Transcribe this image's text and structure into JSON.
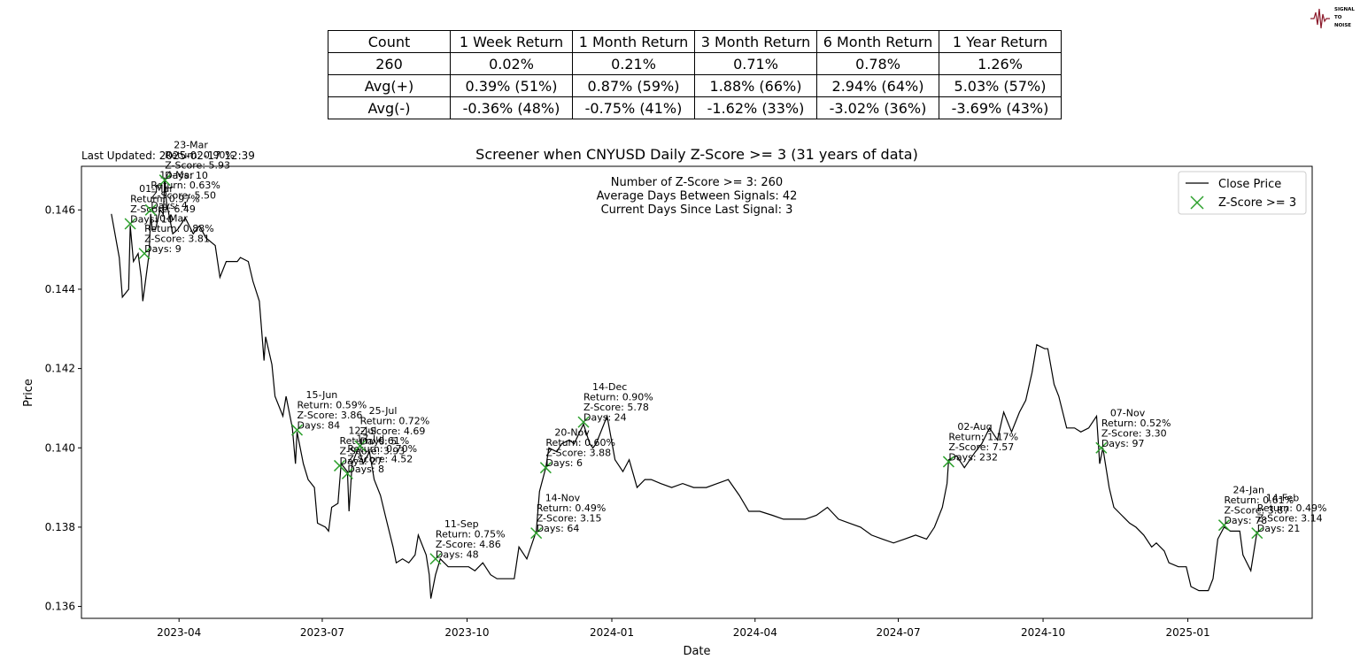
{
  "logo": {
    "name": "signal-to-noise-logo",
    "text": "SIGNAL TO NOISE",
    "color": "#8b1a2b"
  },
  "table": {
    "header": [
      "Count",
      "1 Week Return",
      "1 Month Return",
      "3 Month Return",
      "6 Month Return",
      "1 Year Return"
    ],
    "rows": [
      [
        "260",
        "0.02%",
        "0.21%",
        "0.71%",
        "0.78%",
        "1.26%"
      ],
      [
        "Avg(+)",
        "0.39% (51%)",
        "0.87% (59%)",
        "1.88% (66%)",
        "2.94% (64%)",
        "5.03% (57%)"
      ],
      [
        "Avg(-)",
        "-0.36% (48%)",
        "-0.75% (41%)",
        "-1.62% (33%)",
        "-3.02% (36%)",
        "-3.69% (43%)"
      ]
    ]
  },
  "chart_data": {
    "type": "line",
    "title": "Screener when CNYUSD Daily Z-Score >= 3 (31 years of data)",
    "last_updated": "Last Updated: 2025-02-17 12:39",
    "xlabel": "Date",
    "ylabel": "Price",
    "xlim": [
      "2023-01-29",
      "2025-03-21"
    ],
    "ylim": [
      0.1357,
      0.1471
    ],
    "x_ticks": [
      "2023-04",
      "2023-07",
      "2023-10",
      "2024-01",
      "2024-04",
      "2024-07",
      "2024-10",
      "2025-01"
    ],
    "y_ticks": [
      0.136,
      0.138,
      0.14,
      0.142,
      0.144,
      0.146
    ],
    "y_tick_labels": [
      "0.136",
      "0.138",
      "0.140",
      "0.142",
      "0.144",
      "0.146"
    ],
    "stats_text": [
      "Number of Z-Score >= 3: 260",
      "Average Days Between Signals: 42",
      "Current Days Since Last Signal: 3"
    ],
    "legend": {
      "placement": "top-right",
      "entries": [
        "Close Price",
        "Z-Score >= 3"
      ]
    },
    "colors": {
      "line": "#000000",
      "marker": "#2ca02c"
    },
    "series": [
      {
        "name": "Close Price",
        "points": [
          [
            "2023-02-17",
            0.1459
          ],
          [
            "2023-02-22",
            0.1448
          ],
          [
            "2023-02-24",
            0.1438
          ],
          [
            "2023-02-28",
            0.144
          ],
          [
            "2023-03-01",
            0.1456
          ],
          [
            "2023-03-03",
            0.1447
          ],
          [
            "2023-03-06",
            0.1449
          ],
          [
            "2023-03-08",
            0.1443
          ],
          [
            "2023-03-09",
            0.1437
          ],
          [
            "2023-03-10",
            0.144
          ],
          [
            "2023-03-13",
            0.1449
          ],
          [
            "2023-03-14",
            0.1459
          ],
          [
            "2023-03-15",
            0.1455
          ],
          [
            "2023-03-17",
            0.1455
          ],
          [
            "2023-03-20",
            0.146
          ],
          [
            "2023-03-22",
            0.1459
          ],
          [
            "2023-03-23",
            0.1468
          ],
          [
            "2023-03-24",
            0.1462
          ],
          [
            "2023-03-28",
            0.1454
          ],
          [
            "2023-03-31",
            0.1455
          ],
          [
            "2023-04-05",
            0.1458
          ],
          [
            "2023-04-10",
            0.1454
          ],
          [
            "2023-04-14",
            0.1456
          ],
          [
            "2023-04-18",
            0.1453
          ],
          [
            "2023-04-24",
            0.1451
          ],
          [
            "2023-04-27",
            0.1443
          ],
          [
            "2023-05-01",
            0.1447
          ],
          [
            "2023-05-08",
            0.1447
          ],
          [
            "2023-05-10",
            0.1448
          ],
          [
            "2023-05-15",
            0.1447
          ],
          [
            "2023-05-18",
            0.1442
          ],
          [
            "2023-05-22",
            0.1437
          ],
          [
            "2023-05-25",
            0.1422
          ],
          [
            "2023-05-26",
            0.1428
          ],
          [
            "2023-05-30",
            0.1421
          ],
          [
            "2023-06-01",
            0.1413
          ],
          [
            "2023-06-06",
            0.1408
          ],
          [
            "2023-06-08",
            0.1413
          ],
          [
            "2023-06-12",
            0.1405
          ],
          [
            "2023-06-14",
            0.1396
          ],
          [
            "2023-06-15",
            0.1404
          ],
          [
            "2023-06-19",
            0.1396
          ],
          [
            "2023-06-22",
            0.1392
          ],
          [
            "2023-06-26",
            0.139
          ],
          [
            "2023-06-28",
            0.1381
          ],
          [
            "2023-07-03",
            0.138
          ],
          [
            "2023-07-05",
            0.1379
          ],
          [
            "2023-07-07",
            0.1385
          ],
          [
            "2023-07-11",
            0.1386
          ],
          [
            "2023-07-13",
            0.1396
          ],
          [
            "2023-07-17",
            0.1394
          ],
          [
            "2023-07-18",
            0.1384
          ],
          [
            "2023-07-20",
            0.1396
          ],
          [
            "2023-07-24",
            0.14
          ],
          [
            "2023-07-27",
            0.1396
          ],
          [
            "2023-07-31",
            0.1399
          ],
          [
            "2023-08-03",
            0.1392
          ],
          [
            "2023-08-07",
            0.1388
          ],
          [
            "2023-08-10",
            0.1383
          ],
          [
            "2023-08-15",
            0.1375
          ],
          [
            "2023-08-17",
            0.1371
          ],
          [
            "2023-08-21",
            0.1372
          ],
          [
            "2023-08-25",
            0.1371
          ],
          [
            "2023-08-29",
            0.1373
          ],
          [
            "2023-08-31",
            0.1378
          ],
          [
            "2023-09-05",
            0.1373
          ],
          [
            "2023-09-07",
            0.1368
          ],
          [
            "2023-09-08",
            0.1362
          ],
          [
            "2023-09-11",
            0.1368
          ],
          [
            "2023-09-14",
            0.1372
          ],
          [
            "2023-09-19",
            0.137
          ],
          [
            "2023-09-22",
            0.137
          ],
          [
            "2023-09-27",
            0.137
          ],
          [
            "2023-10-02",
            0.137
          ],
          [
            "2023-10-06",
            0.1369
          ],
          [
            "2023-10-11",
            0.1371
          ],
          [
            "2023-10-16",
            0.1368
          ],
          [
            "2023-10-20",
            0.1367
          ],
          [
            "2023-10-25",
            0.1367
          ],
          [
            "2023-10-31",
            0.1367
          ],
          [
            "2023-11-03",
            0.1375
          ],
          [
            "2023-11-08",
            0.1372
          ],
          [
            "2023-11-14",
            0.1379
          ],
          [
            "2023-11-16",
            0.1389
          ],
          [
            "2023-11-20",
            0.1395
          ],
          [
            "2023-11-22",
            0.14
          ],
          [
            "2023-11-27",
            0.1399
          ],
          [
            "2023-11-30",
            0.1401
          ],
          [
            "2023-12-05",
            0.1402
          ],
          [
            "2023-12-08",
            0.1401
          ],
          [
            "2023-12-14",
            0.1406
          ],
          [
            "2023-12-18",
            0.1401
          ],
          [
            "2023-12-20",
            0.14
          ],
          [
            "2023-12-22",
            0.1401
          ],
          [
            "2023-12-27",
            0.1406
          ],
          [
            "2023-12-29",
            0.1408
          ],
          [
            "2024-01-03",
            0.1397
          ],
          [
            "2024-01-08",
            0.1394
          ],
          [
            "2024-01-12",
            0.1397
          ],
          [
            "2024-01-17",
            0.139
          ],
          [
            "2024-01-22",
            0.1392
          ],
          [
            "2024-01-26",
            0.1392
          ],
          [
            "2024-02-01",
            0.1391
          ],
          [
            "2024-02-08",
            0.139
          ],
          [
            "2024-02-15",
            0.1391
          ],
          [
            "2024-02-22",
            0.139
          ],
          [
            "2024-03-01",
            0.139
          ],
          [
            "2024-03-08",
            0.1391
          ],
          [
            "2024-03-15",
            0.1392
          ],
          [
            "2024-03-22",
            0.1388
          ],
          [
            "2024-03-28",
            0.1384
          ],
          [
            "2024-04-04",
            0.1384
          ],
          [
            "2024-04-12",
            0.1383
          ],
          [
            "2024-04-19",
            0.1382
          ],
          [
            "2024-04-26",
            0.1382
          ],
          [
            "2024-05-03",
            0.1382
          ],
          [
            "2024-05-10",
            0.1383
          ],
          [
            "2024-05-17",
            0.1385
          ],
          [
            "2024-05-24",
            0.1382
          ],
          [
            "2024-05-31",
            0.1381
          ],
          [
            "2024-06-07",
            0.138
          ],
          [
            "2024-06-14",
            0.1378
          ],
          [
            "2024-06-21",
            0.1377
          ],
          [
            "2024-06-28",
            0.1376
          ],
          [
            "2024-07-05",
            0.1377
          ],
          [
            "2024-07-12",
            0.1378
          ],
          [
            "2024-07-19",
            0.1377
          ],
          [
            "2024-07-24",
            0.138
          ],
          [
            "2024-07-29",
            0.1385
          ],
          [
            "2024-08-01",
            0.1391
          ],
          [
            "2024-08-02",
            0.1397
          ],
          [
            "2024-08-07",
            0.1398
          ],
          [
            "2024-08-12",
            0.1395
          ],
          [
            "2024-08-19",
            0.1399
          ],
          [
            "2024-08-23",
            0.1401
          ],
          [
            "2024-08-28",
            0.1405
          ],
          [
            "2024-09-02",
            0.1402
          ],
          [
            "2024-09-06",
            0.1409
          ],
          [
            "2024-09-11",
            0.1404
          ],
          [
            "2024-09-16",
            0.1409
          ],
          [
            "2024-09-20",
            0.1412
          ],
          [
            "2024-09-24",
            0.1419
          ],
          [
            "2024-09-27",
            0.1426
          ],
          [
            "2024-10-02",
            0.1425
          ],
          [
            "2024-10-04",
            0.1425
          ],
          [
            "2024-10-08",
            0.1416
          ],
          [
            "2024-10-11",
            0.1413
          ],
          [
            "2024-10-16",
            0.1405
          ],
          [
            "2024-10-21",
            0.1405
          ],
          [
            "2024-10-25",
            0.1404
          ],
          [
            "2024-10-30",
            0.1405
          ],
          [
            "2024-11-04",
            0.1408
          ],
          [
            "2024-11-06",
            0.1396
          ],
          [
            "2024-11-08",
            0.14
          ],
          [
            "2024-11-12",
            0.139
          ],
          [
            "2024-11-15",
            0.1385
          ],
          [
            "2024-11-20",
            0.1383
          ],
          [
            "2024-11-25",
            0.1381
          ],
          [
            "2024-11-29",
            0.138
          ],
          [
            "2024-12-04",
            0.1378
          ],
          [
            "2024-12-09",
            0.1375
          ],
          [
            "2024-12-12",
            0.1376
          ],
          [
            "2024-12-17",
            0.1374
          ],
          [
            "2024-12-20",
            0.1371
          ],
          [
            "2024-12-26",
            0.137
          ],
          [
            "2024-12-31",
            0.137
          ],
          [
            "2025-01-03",
            0.1365
          ],
          [
            "2025-01-08",
            0.1364
          ],
          [
            "2025-01-14",
            0.1364
          ],
          [
            "2025-01-17",
            0.1367
          ],
          [
            "2025-01-20",
            0.1377
          ],
          [
            "2025-01-24",
            0.138
          ],
          [
            "2025-01-28",
            0.1379
          ],
          [
            "2025-02-03",
            0.1379
          ],
          [
            "2025-02-05",
            0.1373
          ],
          [
            "2025-02-10",
            0.1369
          ],
          [
            "2025-02-14",
            0.1379
          ]
        ]
      },
      {
        "name": "Z-Score >= 3",
        "points": [
          {
            "date": "2023-03-01",
            "price": 0.14565,
            "label": [
              "01-Mar",
              "Return: 0.97%",
              "Z-Score: 6.49",
              "Days: 10"
            ]
          },
          {
            "date": "2023-03-10",
            "price": 0.1449,
            "label": [
              "10-Mar",
              "Return: 0.88%",
              "Z-Score: 3.81",
              "Days: 9"
            ]
          },
          {
            "date": "2023-03-14",
            "price": 0.146,
            "label": [
              "14-Mar",
              "Return: 0.63%",
              "Z-Score: 5.50",
              "Days: 4"
            ]
          },
          {
            "date": "2023-03-23",
            "price": 0.14675,
            "label": [
              "23-Mar",
              "Return: 0.90%",
              "Z-Score: 5.93",
              "Days: 10"
            ]
          },
          {
            "date": "2023-06-15",
            "price": 0.14045,
            "label": [
              "15-Jun",
              "Return: 0.59%",
              "Z-Score: 3.86",
              "Days: 84"
            ]
          },
          {
            "date": "2023-07-12",
            "price": 0.13955,
            "label": [
              "12-Jul",
              "Return: 0.61%",
              "Z-Score: 3.93",
              "Days: 27"
            ]
          },
          {
            "date": "2023-07-17",
            "price": 0.13935,
            "label": [
              "17-Jul",
              "Return: 0.70%",
              "Z-Score: 4.52",
              "Days: 8"
            ]
          },
          {
            "date": "2023-07-25",
            "price": 0.14005,
            "label": [
              "25-Jul",
              "Return: 0.72%",
              "Z-Score: 4.69",
              "Days: 5"
            ]
          },
          {
            "date": "2023-09-11",
            "price": 0.1372,
            "label": [
              "11-Sep",
              "Return: 0.75%",
              "Z-Score: 4.86",
              "Days: 48"
            ]
          },
          {
            "date": "2023-11-14",
            "price": 0.13785,
            "label": [
              "14-Nov",
              "Return: 0.49%",
              "Z-Score: 3.15",
              "Days: 64"
            ]
          },
          {
            "date": "2023-11-20",
            "price": 0.1395,
            "label": [
              "20-Nov",
              "Return: 0.60%",
              "Z-Score: 3.88",
              "Days: 6"
            ]
          },
          {
            "date": "2023-12-14",
            "price": 0.14065,
            "label": [
              "14-Dec",
              "Return: 0.90%",
              "Z-Score: 5.78",
              "Days: 24"
            ]
          },
          {
            "date": "2024-08-02",
            "price": 0.13965,
            "label": [
              "02-Aug",
              "Return: 1.17%",
              "Z-Score: 7.57",
              "Days: 232"
            ]
          },
          {
            "date": "2024-11-07",
            "price": 0.14,
            "label": [
              "07-Nov",
              "Return: 0.52%",
              "Z-Score: 3.30",
              "Days: 97"
            ]
          },
          {
            "date": "2025-01-24",
            "price": 0.13805,
            "label": [
              "24-Jan",
              "Return: 0.61%",
              "Z-Score: 3.87",
              "Days: 78"
            ]
          },
          {
            "date": "2025-02-14",
            "price": 0.13785,
            "label": [
              "14-Feb",
              "Return: 0.49%",
              "Z-Score: 3.14",
              "Days: 21"
            ]
          }
        ]
      }
    ]
  }
}
